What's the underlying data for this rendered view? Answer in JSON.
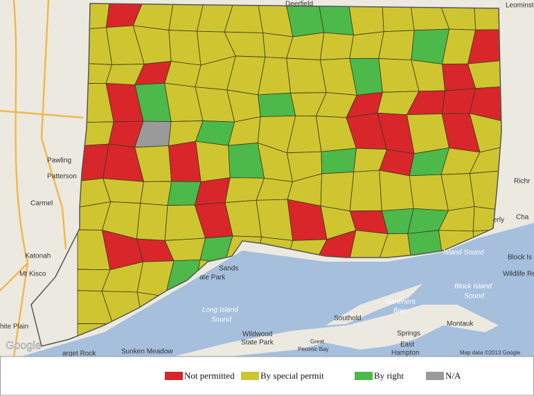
{
  "legend": [
    {
      "label": "Not permitted",
      "color": "#d8262a"
    },
    {
      "label": "By special permit",
      "color": "#cfc530"
    },
    {
      "label": "By right",
      "color": "#4cb94a"
    },
    {
      "label": "N/A",
      "color": "#9a9a9a"
    }
  ],
  "map_labels": [
    "Deerfield",
    "Leominster",
    "Pawling",
    "Patterson",
    "Carmel",
    "Katonah",
    "Mt Kisco",
    "hite Plain",
    "Sands",
    "ate Park",
    "Long Island",
    "Sound",
    "Wildwood",
    "State Park",
    "Sunken Meadow",
    "arget Rock",
    "Southold",
    "Gardiners",
    "Bay",
    "Springs",
    "East",
    "Hampton",
    "Montauk",
    "Block Island",
    "Sound",
    "Block Is",
    "Wildlife Re",
    "Richr",
    "Cha",
    "erly",
    "Island Sound",
    "Great",
    "Peconic Bay",
    "Map data ©2013 Google",
    "Google"
  ]
}
